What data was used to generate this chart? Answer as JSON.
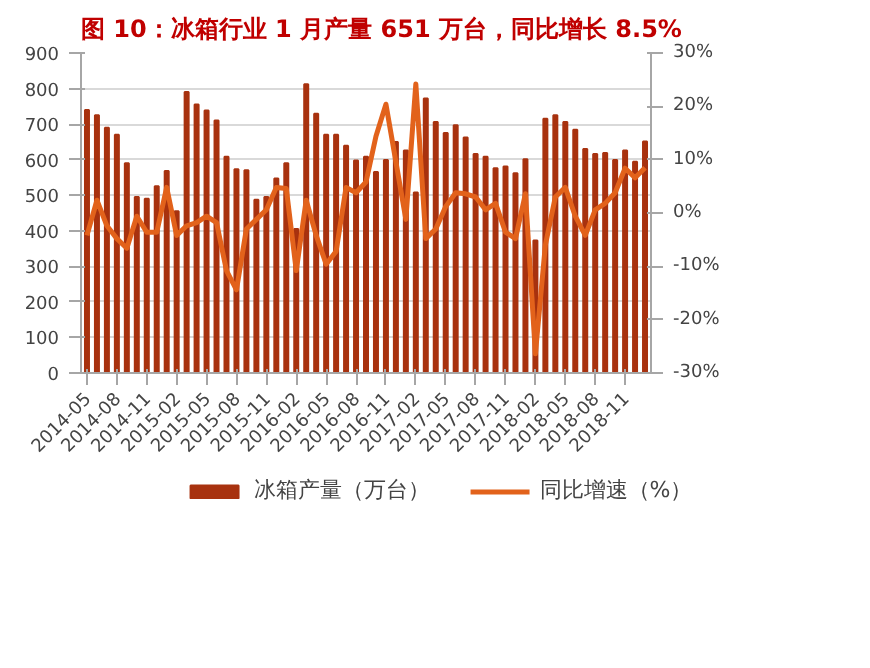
{
  "chart_data": {
    "type": "bar",
    "title": "图 10：冰箱行业 1 月产量 651 万台，同比增长 8.5%",
    "categories": [
      "2014-05",
      null,
      null,
      "2014-08",
      null,
      null,
      "2014-11",
      null,
      null,
      "2015-02",
      null,
      null,
      "2015-05",
      null,
      null,
      "2015-08",
      null,
      null,
      "2015-11",
      null,
      null,
      "2016-02",
      null,
      null,
      "2016-05",
      null,
      null,
      "2016-08",
      null,
      null,
      "2016-11",
      null,
      null,
      "2017-02",
      null,
      null,
      "2017-05",
      null,
      null,
      "2017-08",
      null,
      null,
      "2017-11",
      null,
      null,
      "2018-02",
      null,
      null,
      "2018-05",
      null,
      null,
      "2018-08",
      null,
      null,
      "2018-11",
      null,
      null
    ],
    "series": [
      {
        "name": "冰箱产量（万台）",
        "color": "#a8320f",
        "values": [
          740,
          725,
          690,
          670,
          590,
          495,
          490,
          525,
          568,
          455,
          790,
          755,
          738,
          710,
          608,
          573,
          570,
          487,
          495,
          547,
          590,
          405,
          812,
          729,
          670,
          670,
          639,
          598,
          608,
          565,
          599,
          650,
          626,
          508,
          772,
          706,
          675,
          697,
          662,
          616,
          608,
          576,
          581,
          562,
          601,
          373,
          715,
          725,
          706,
          684,
          630,
          616,
          619,
          599,
          626,
          594,
          651
        ]
      },
      {
        "name": "同比增速（%）",
        "type": "line",
        "axis": "y2",
        "color": "#e2621b",
        "values": [
          -4.2,
          2.4,
          -2.4,
          -4.8,
          -6.6,
          -0.6,
          -3.6,
          -3.6,
          4.8,
          -4.2,
          -2.4,
          -1.8,
          -0.6,
          -1.8,
          -10.8,
          -14.4,
          -3,
          -1.2,
          0.6,
          4.8,
          4.6,
          -10.8,
          2.4,
          -4.2,
          -9.6,
          -7.2,
          4.8,
          3.8,
          5.8,
          14.4,
          20.4,
          9.6,
          -1.2,
          24.2,
          -4.8,
          -3,
          1.2,
          3.8,
          3.6,
          3,
          0.6,
          1.8,
          -3.6,
          -4.8,
          3.6,
          -26.4,
          -6,
          3,
          4.8,
          -0.6,
          -4.2,
          0.6,
          1.8,
          3.8,
          8.4,
          6.6,
          8.5
        ]
      }
    ],
    "ylim": [
      0,
      900
    ],
    "yticks": [
      0,
      100,
      200,
      300,
      400,
      500,
      600,
      700,
      800,
      900
    ],
    "y2lim": [
      -30,
      30
    ],
    "y2ticks": [
      {
        "value": -30,
        "label": "-30%"
      },
      {
        "value": -20,
        "label": "-20%"
      },
      {
        "value": -10,
        "label": "-10%"
      },
      {
        "value": 0,
        "label": "0%"
      },
      {
        "value": 10,
        "label": "10%"
      },
      {
        "value": 20,
        "label": "20%"
      },
      {
        "value": 30,
        "label": "30%"
      }
    ],
    "grid": "y",
    "legend": "bottom"
  }
}
